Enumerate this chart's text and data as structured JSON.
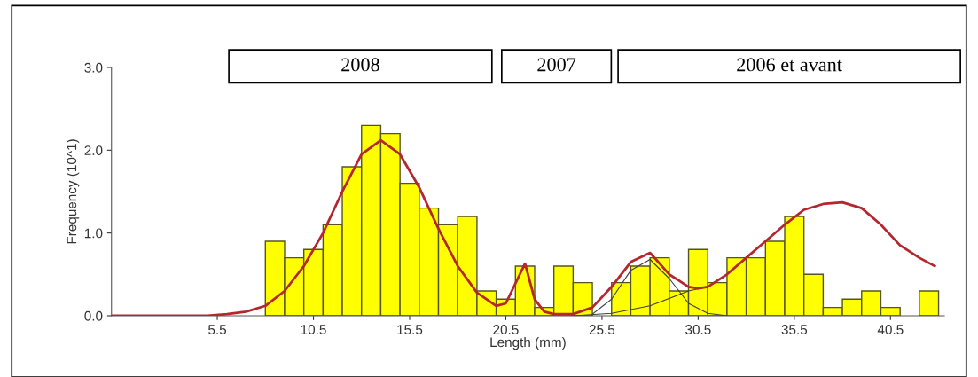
{
  "chart_data": {
    "type": "histogram",
    "xlabel": "Length (mm)",
    "ylabel": "Frequency (10^1)",
    "bins": [
      8,
      9,
      10,
      11,
      12,
      13,
      14,
      15,
      16,
      17,
      18,
      19,
      20,
      21,
      22,
      23,
      24,
      25,
      26,
      27,
      28,
      29,
      30,
      31,
      32,
      33,
      34,
      35,
      36,
      37,
      38,
      39,
      40,
      41,
      42,
      43
    ],
    "values": [
      0.9,
      0.7,
      0.8,
      1.1,
      1.8,
      2.3,
      2.2,
      1.6,
      1.3,
      1.1,
      1.2,
      0.3,
      0.2,
      0.6,
      0.1,
      0.6,
      0.4,
      0,
      0.4,
      0.6,
      0.7,
      0.3,
      0.8,
      0.4,
      0.7,
      0.7,
      0.9,
      1.2,
      0.5,
      0.1,
      0.2,
      0.3,
      0.1,
      0,
      0.3
    ],
    "color": "#ffff00",
    "series": [
      {
        "type": "line",
        "color": "#404040",
        "x": [
          25,
          26,
          27,
          28,
          29,
          30,
          31,
          32
        ],
        "values": [
          0.02,
          0.2,
          0.55,
          0.68,
          0.45,
          0.15,
          0.03,
          0
        ]
      },
      {
        "type": "line",
        "color": "#404040",
        "x": [
          24,
          26,
          28,
          30,
          31
        ],
        "values": [
          0,
          0.03,
          0.12,
          0.3,
          0.35
        ]
      },
      {
        "type": "line",
        "color": "#b5262e",
        "x": [
          0,
          5,
          6,
          7,
          8,
          9,
          10,
          11,
          12,
          13,
          14,
          15,
          16,
          17,
          18,
          19,
          20,
          20.5,
          21.5,
          22,
          22.5,
          23,
          24,
          25,
          26,
          27,
          28,
          29,
          30,
          30.5,
          31,
          32,
          33,
          34,
          35,
          36,
          37,
          38,
          39,
          40,
          41,
          42,
          42.8
        ],
        "values": [
          0,
          0,
          0.02,
          0.05,
          0.12,
          0.3,
          0.6,
          1.0,
          1.5,
          1.95,
          2.12,
          1.95,
          1.55,
          1.05,
          0.6,
          0.28,
          0.12,
          0.15,
          0.63,
          0.2,
          0.05,
          0.02,
          0.02,
          0.1,
          0.35,
          0.65,
          0.76,
          0.5,
          0.35,
          0.33,
          0.35,
          0.5,
          0.7,
          0.9,
          1.1,
          1.28,
          1.35,
          1.37,
          1.3,
          1.1,
          0.85,
          0.7,
          0.6
        ]
      }
    ],
    "xlim": [
      0,
      43.3
    ],
    "ylim": [
      0,
      3.0
    ],
    "xticks": [
      5.5,
      10.5,
      15.5,
      20.5,
      25.5,
      30.5,
      35.5,
      40.5
    ],
    "yticks": [
      {
        "value": 0,
        "label": "0.0"
      },
      {
        "value": 1,
        "label": "1.0"
      },
      {
        "value": 2,
        "label": "2.0"
      },
      {
        "value": 3,
        "label": "3.0"
      }
    ],
    "annotations": [
      "2008",
      "2007",
      "2006 et avant"
    ]
  }
}
